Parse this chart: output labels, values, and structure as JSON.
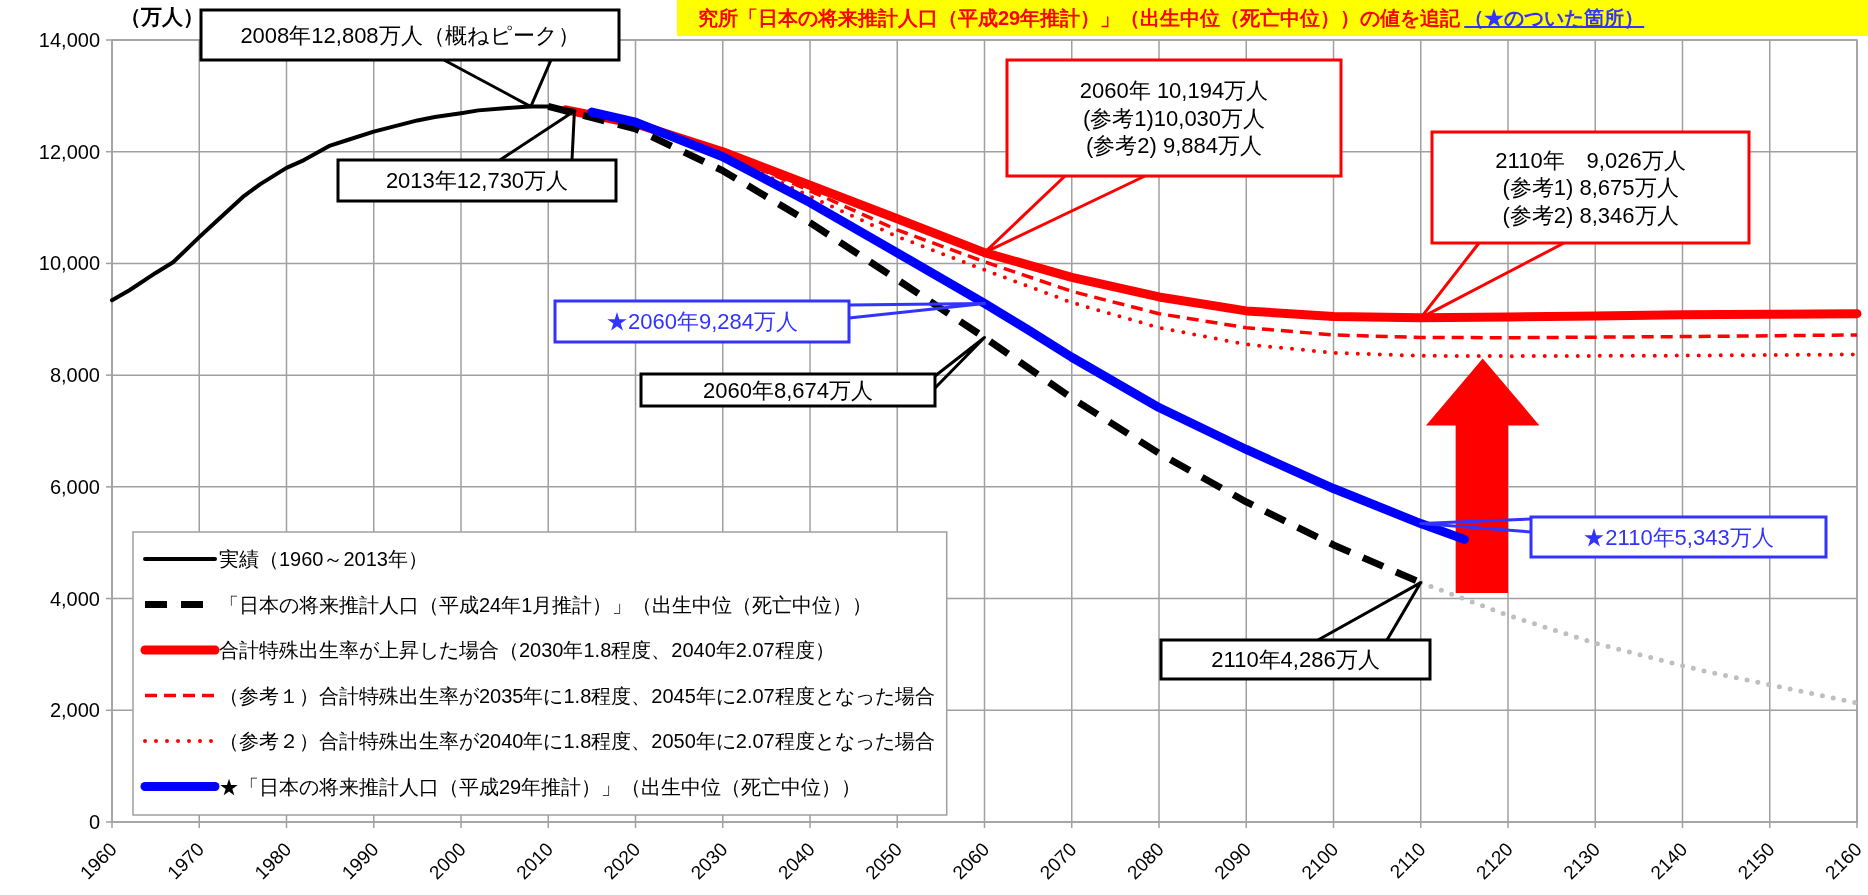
{
  "chart_data": {
    "type": "line",
    "title": "究所「日本の将来推計人口（平成29年推計）」（出生中位（死亡中位））の値を追記",
    "subtitle": "（★のついた箇所）",
    "ylabel": "（万人）",
    "xlim": [
      1960,
      2160
    ],
    "xticks": [
      1960,
      1970,
      1980,
      1990,
      2000,
      2010,
      2020,
      2030,
      2040,
      2050,
      2060,
      2070,
      2080,
      2090,
      2100,
      2110,
      2120,
      2130,
      2140,
      2150,
      2160
    ],
    "ylim": [
      0,
      14000
    ],
    "yticks": [
      0,
      {
        "value": 2000,
        "label": "2,000"
      },
      {
        "value": 4000,
        "label": "4,000"
      },
      {
        "value": 6000,
        "label": "6,000"
      },
      {
        "value": 8000,
        "label": "8,000"
      },
      {
        "value": 10000,
        "label": "10,000"
      },
      {
        "value": 12000,
        "label": "12,000"
      },
      {
        "value": 14000,
        "label": "14,000"
      }
    ],
    "grid": true,
    "legend": "bottom left",
    "series": [
      {
        "name": "実績（1960～2013年）",
        "color": "#000000",
        "line_style": "solid",
        "x": [
          1960,
          1962,
          1965,
          1967,
          1970,
          1972,
          1975,
          1977,
          1980,
          1982,
          1985,
          1987,
          1990,
          1992,
          1995,
          1997,
          2000,
          2002,
          2005,
          2007,
          2008,
          2010,
          2013
        ],
        "values": [
          9340,
          9520,
          9830,
          10020,
          10470,
          10760,
          11190,
          11420,
          11710,
          11850,
          12110,
          12210,
          12360,
          12440,
          12560,
          12620,
          12690,
          12740,
          12780,
          12800,
          12808,
          12810,
          12730
        ]
      },
      {
        "name": "「日本の将来推計人口（平成24年1月推計）」（出生中位（死亡中位））",
        "color": "#000000",
        "line_style": "dashed",
        "x": [
          2010,
          2020,
          2030,
          2040,
          2050,
          2060,
          2070,
          2080,
          2090,
          2100,
          2110
        ],
        "values": [
          12810,
          12410,
          11660,
          10730,
          9710,
          8674,
          7590,
          6600,
          5730,
          4960,
          4286
        ]
      },
      {
        "name": "合計特殊出生率が上昇した場合（2030年1.8程度、2040年2.07程度）",
        "color": "#ff0000",
        "line_style": "solid",
        "x": [
          2012,
          2020,
          2030,
          2040,
          2050,
          2060,
          2070,
          2080,
          2090,
          2100,
          2110,
          2120,
          2130,
          2140,
          2150,
          2160
        ],
        "values": [
          12750,
          12500,
          12000,
          11400,
          10800,
          10194,
          9750,
          9400,
          9150,
          9050,
          9026,
          9040,
          9060,
          9080,
          9090,
          9100
        ]
      },
      {
        "name": "（参考１）合計特殊出生率が2035年に1.8程度、2045年に2.07程度となった場合",
        "color": "#ff0000",
        "line_style": "dashed",
        "x": [
          2030,
          2040,
          2050,
          2060,
          2070,
          2080,
          2090,
          2100,
          2110,
          2120,
          2140,
          2160
        ],
        "values": [
          11980,
          11300,
          10600,
          10030,
          9500,
          9100,
          8850,
          8720,
          8675,
          8670,
          8690,
          8720
        ]
      },
      {
        "name": "（参考２）合計特殊出生率が2040年に1.8程度、2050年に2.07程度となった場合",
        "color": "#ff0000",
        "line_style": "dotted",
        "x": [
          2030,
          2040,
          2050,
          2060,
          2070,
          2080,
          2090,
          2100,
          2110,
          2120,
          2140,
          2160
        ],
        "values": [
          11950,
          11200,
          10480,
          9884,
          9300,
          8850,
          8550,
          8400,
          8346,
          8340,
          8350,
          8370
        ]
      },
      {
        "name": "★「日本の将来推計人口（平成29年推計）」（出生中位（死亡中位））",
        "color": "#0000ff",
        "line_style": "solid",
        "x": [
          2015,
          2020,
          2030,
          2040,
          2050,
          2060,
          2065,
          2070,
          2080,
          2090,
          2100,
          2110,
          2115
        ],
        "values": [
          12710,
          12530,
          11910,
          11090,
          10190,
          9284,
          8810,
          8320,
          7420,
          6670,
          5970,
          5343,
          5060
        ]
      },
      {
        "color": "#bfbfbf",
        "line_style": "dotted",
        "x": [
          2110,
          2120,
          2130,
          2142,
          2160
        ],
        "values": [
          4286,
          3700,
          3200,
          2720,
          2130
        ]
      }
    ],
    "annotations": [
      "2008年12,808万人（概ねピーク）",
      "2013年12,730万人",
      "2060年 10,194万人\n(参考1)10,030万人\n(参考2) 9,884万人",
      "2110年　9,026万人\n(参考1) 8,675万人\n(参考2) 8,346万人",
      "★2060年9,284万人",
      "2060年8,674万人",
      "★2110年5,343万人",
      "2110年4,286万人"
    ]
  }
}
